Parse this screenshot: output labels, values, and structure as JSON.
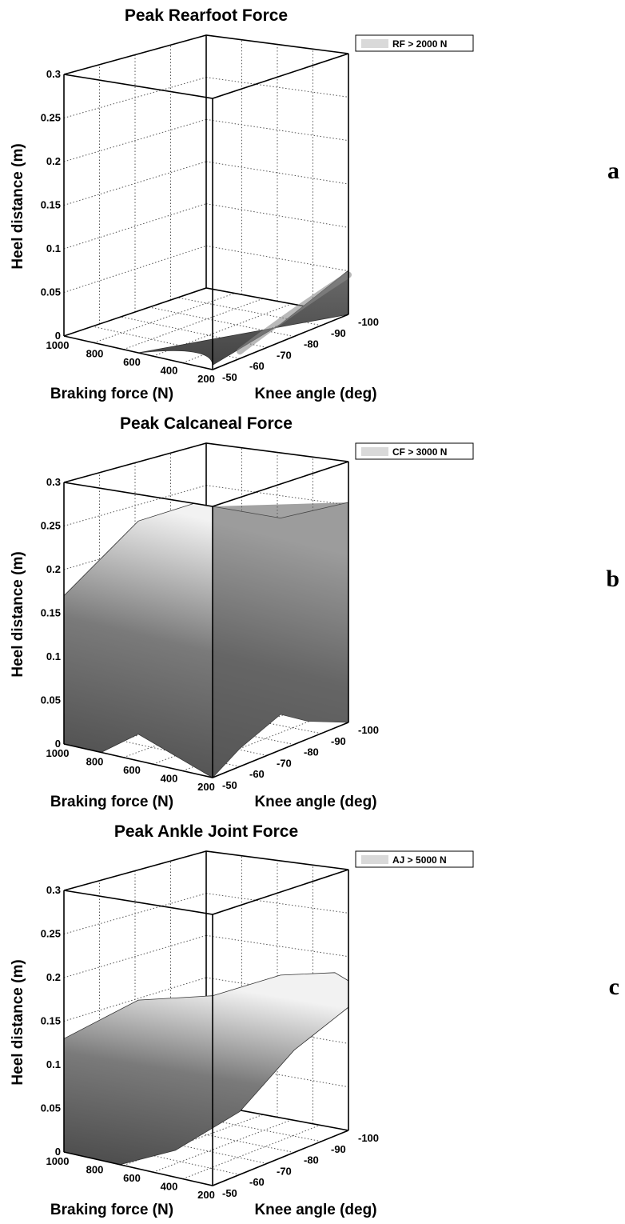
{
  "chart_data": [
    {
      "type": "surface3d",
      "title": "Peak Rearfoot Force",
      "panel_label": "a",
      "legend": "RF > 2000 N",
      "xlabel": "Braking force (N)",
      "ylabel": "Knee angle (deg)",
      "zlabel": "Heel distance (m)",
      "x_ticks": [
        "1000",
        "800",
        "600",
        "400",
        "200"
      ],
      "y_ticks": [
        "-50",
        "-60",
        "-70",
        "-80",
        "-90",
        "-100"
      ],
      "z_ticks": [
        "0",
        "0.05",
        "0.1",
        "0.15",
        "0.2",
        "0.25",
        "0.3"
      ],
      "xlim": [
        200,
        1000
      ],
      "ylim": [
        -50,
        -100
      ],
      "zlim": [
        0,
        0.3
      ],
      "threshold_N": 2000,
      "region_top_heel_distance_m": [
        {
          "braking_force_N": 600,
          "knee_angle_deg": -50,
          "heel_distance_m": 0.0
        },
        {
          "braking_force_N": 200,
          "knee_angle_deg": -50,
          "heel_distance_m": 0.0
        },
        {
          "braking_force_N": 200,
          "knee_angle_deg": -75,
          "heel_distance_m": 0.02
        },
        {
          "braking_force_N": 200,
          "knee_angle_deg": -100,
          "heel_distance_m": 0.05
        }
      ]
    },
    {
      "type": "surface3d",
      "title": "Peak Calcaneal Force",
      "panel_label": "b",
      "legend": "CF > 3000 N",
      "xlabel": "Braking force (N)",
      "ylabel": "Knee angle (deg)",
      "zlabel": "Heel distance (m)",
      "x_ticks": [
        "1000",
        "800",
        "600",
        "400",
        "200"
      ],
      "y_ticks": [
        "-50",
        "-60",
        "-70",
        "-80",
        "-90",
        "-100"
      ],
      "z_ticks": [
        "0",
        "0.05",
        "0.1",
        "0.15",
        "0.2",
        "0.25",
        "0.3"
      ],
      "xlim": [
        200,
        1000
      ],
      "ylim": [
        -50,
        -100
      ],
      "zlim": [
        0,
        0.3
      ],
      "threshold_N": 3000,
      "region_top_heel_distance_m": [
        {
          "braking_force_N": 1000,
          "knee_angle_deg": -50,
          "heel_distance_m": 0.17
        },
        {
          "braking_force_N": 200,
          "knee_angle_deg": -50,
          "heel_distance_m": 0.3
        },
        {
          "braking_force_N": 200,
          "knee_angle_deg": -100,
          "heel_distance_m": 0.25
        }
      ]
    },
    {
      "type": "surface3d",
      "title": "Peak Ankle Joint Force",
      "panel_label": "c",
      "legend": "AJ > 5000 N",
      "xlabel": "Braking force (N)",
      "ylabel": "Knee angle (deg)",
      "zlabel": "Heel distance (m)",
      "x_ticks": [
        "1000",
        "800",
        "600",
        "400",
        "200"
      ],
      "y_ticks": [
        "-50",
        "-60",
        "-70",
        "-80",
        "-90",
        "-100"
      ],
      "z_ticks": [
        "0",
        "0.05",
        "0.1",
        "0.15",
        "0.2",
        "0.25",
        "0.3"
      ],
      "xlim": [
        200,
        1000
      ],
      "ylim": [
        -50,
        -100
      ],
      "zlim": [
        0,
        0.3
      ],
      "threshold_N": 5000,
      "region_top_heel_distance_m": [
        {
          "braking_force_N": 1000,
          "knee_angle_deg": -50,
          "heel_distance_m": 0.13
        },
        {
          "braking_force_N": 200,
          "knee_angle_deg": -50,
          "heel_distance_m": 0.21
        },
        {
          "braking_force_N": 200,
          "knee_angle_deg": -100,
          "heel_distance_m": 0.17
        }
      ]
    }
  ],
  "colors": {
    "surface_dark": "#4a4a4a",
    "surface_mid": "#7a7a7a",
    "surface_light": "#f2f2f2",
    "legend_swatch": "#d9d9d9"
  }
}
